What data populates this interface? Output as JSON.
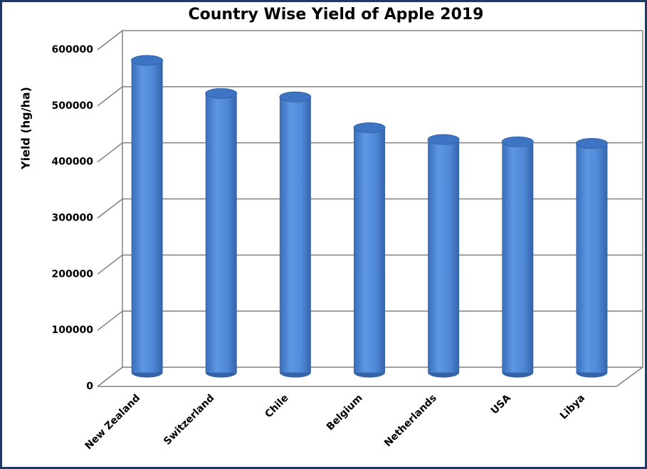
{
  "chart_data": {
    "type": "bar",
    "title": "Country Wise Yield of Apple 2019",
    "y_label": "Yield (hg/ha)",
    "categories": [
      "New Zealand",
      "Switzerland",
      "Chile",
      "Belgium",
      "Netherlands",
      "USA",
      "Libya"
    ],
    "values": [
      564000,
      505000,
      499000,
      444000,
      423000,
      419000,
      416000
    ],
    "color": "#4f88d8",
    "ylim": [
      0,
      600000
    ],
    "yticks": [
      0,
      100000,
      200000,
      300000,
      400000,
      500000,
      600000
    ],
    "grid": true
  }
}
